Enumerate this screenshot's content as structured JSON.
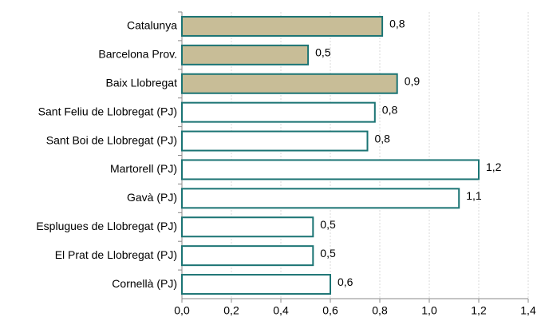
{
  "chart_data": {
    "type": "bar",
    "orientation": "horizontal",
    "categories": [
      "Catalunya",
      "Barcelona Prov.",
      "Baix Llobregat",
      "Sant Feliu de Llobregat (PJ)",
      "Sant Boi de Llobregat (PJ)",
      "Martorell (PJ)",
      "Gavà (PJ)",
      "Esplugues de Llobregat (PJ)",
      "El Prat de Llobregat (PJ)",
      "Cornellà (PJ)"
    ],
    "values": [
      0.81,
      0.51,
      0.87,
      0.78,
      0.75,
      1.2,
      1.12,
      0.53,
      0.53,
      0.6
    ],
    "value_labels": [
      "0,8",
      "0,5",
      "0,9",
      "0,8",
      "0,8",
      "1,2",
      "1,1",
      "0,5",
      "0,5",
      "0,6"
    ],
    "bar_fills": [
      "#c8bd97",
      "#c8bd97",
      "#c8bd97",
      "#ffffff",
      "#ffffff",
      "#ffffff",
      "#ffffff",
      "#ffffff",
      "#ffffff",
      "#ffffff"
    ],
    "stroke_color": "#1b7474",
    "xlim": [
      0,
      1.4
    ],
    "xticks": [
      {
        "value": 0,
        "label": "0,0"
      },
      {
        "value": 0.2,
        "label": "0,2"
      },
      {
        "value": 0.4,
        "label": "0,4"
      },
      {
        "value": 0.6,
        "label": "0,6"
      },
      {
        "value": 0.8,
        "label": "0,8"
      },
      {
        "value": 1.0,
        "label": "1,0"
      },
      {
        "value": 1.2,
        "label": "1,2"
      },
      {
        "value": 1.4,
        "label": "1,4"
      }
    ],
    "grid": true
  }
}
